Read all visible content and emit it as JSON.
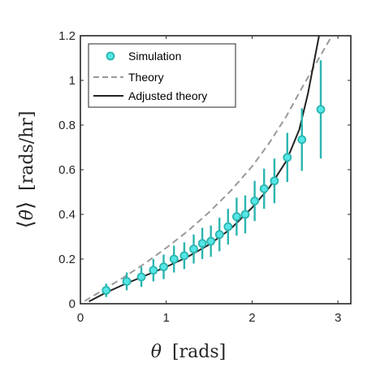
{
  "chart_data": {
    "type": "scatter",
    "xlabel": "θ [rads]",
    "xlabel_symbol": "θ",
    "xlabel_unit": "[rads]",
    "ylabel_unit": "[rads/hr]",
    "xlim": [
      0,
      3.15
    ],
    "ylim": [
      0,
      1.2
    ],
    "xticks": [
      0,
      1,
      2,
      3
    ],
    "yticks": [
      0,
      0.2,
      0.4,
      0.6,
      0.8,
      1,
      1.2
    ],
    "xtick_labels": [
      "0",
      "1",
      "2",
      "3"
    ],
    "ytick_labels": [
      "0",
      "0.2",
      "0.4",
      "0.6",
      "0.8",
      "1",
      "1.2"
    ],
    "grid": false,
    "legend_position": "top-left",
    "series": [
      {
        "name": "Simulation",
        "kind": "points-with-errorbars",
        "color": "#2bb5b0",
        "marker_fill": "#55e6e6",
        "x": [
          0.3,
          0.54,
          0.71,
          0.85,
          0.97,
          1.09,
          1.21,
          1.32,
          1.42,
          1.52,
          1.62,
          1.72,
          1.82,
          1.92,
          2.03,
          2.14,
          2.26,
          2.41,
          2.58,
          2.8
        ],
        "y": [
          0.06,
          0.1,
          0.12,
          0.15,
          0.165,
          0.2,
          0.215,
          0.245,
          0.27,
          0.28,
          0.31,
          0.345,
          0.39,
          0.4,
          0.46,
          0.515,
          0.55,
          0.655,
          0.735,
          0.87
        ],
        "err": [
          0.03,
          0.04,
          0.045,
          0.05,
          0.055,
          0.06,
          0.06,
          0.065,
          0.07,
          0.07,
          0.075,
          0.08,
          0.085,
          0.085,
          0.09,
          0.09,
          0.1,
          0.11,
          0.14,
          0.22
        ]
      },
      {
        "name": "Theory",
        "kind": "line",
        "style": "dashed",
        "color": "#999999",
        "x": [
          0.05,
          0.3,
          0.5,
          0.75,
          1.0,
          1.25,
          1.5,
          1.75,
          2.0,
          2.2,
          2.4,
          2.6,
          2.75,
          2.9,
          3.0
        ],
        "y": [
          0.012,
          0.07,
          0.117,
          0.18,
          0.25,
          0.325,
          0.41,
          0.505,
          0.615,
          0.72,
          0.84,
          0.98,
          1.08,
          1.18,
          1.24
        ]
      },
      {
        "name": "Adjusted theory",
        "kind": "line",
        "style": "solid",
        "color": "#222222",
        "x": [
          0.1,
          0.3,
          0.5,
          0.75,
          1.0,
          1.25,
          1.5,
          1.75,
          2.0,
          2.2,
          2.4,
          2.55,
          2.65,
          2.72,
          2.78
        ],
        "y": [
          0.01,
          0.05,
          0.085,
          0.125,
          0.165,
          0.21,
          0.265,
          0.335,
          0.43,
          0.52,
          0.64,
          0.78,
          0.94,
          1.08,
          1.2
        ]
      }
    ]
  }
}
